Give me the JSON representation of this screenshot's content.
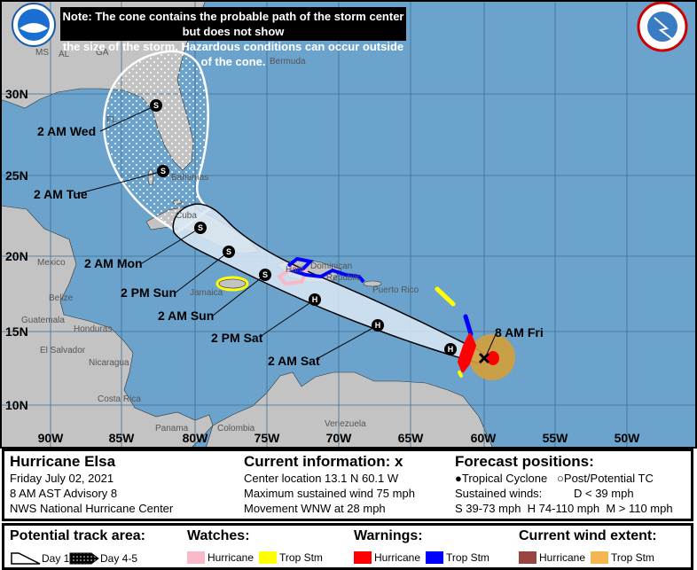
{
  "note": {
    "line1": "Note: The cone contains the probable path of the storm center but does not show",
    "line2": "the size of the storm. Hazardous conditions can occur outside of the cone."
  },
  "logos": {
    "noaa": "NOAA",
    "nws": "NATIONAL WEATHER SERVICE"
  },
  "axes": {
    "lat_labels": [
      "30N",
      "25N",
      "20N",
      "15N",
      "10N"
    ],
    "lon_labels": [
      "90W",
      "85W",
      "80W",
      "75W",
      "70W",
      "65W",
      "60W",
      "55W",
      "50W"
    ]
  },
  "places": [
    "MS",
    "AL",
    "GA",
    "FL",
    "Bermuda",
    "Bahamas",
    "Cuba",
    "Mexico",
    "Belize",
    "Guatemala",
    "Honduras",
    "El Salvador",
    "Nicaragua",
    "Costa Rica",
    "Panama",
    "Colombia",
    "Venezuela",
    "Jamaica",
    "Haiti",
    "Dominican",
    "Republic",
    "Puerto Rico"
  ],
  "forecast_points": [
    {
      "label": "2 AM Wed",
      "symbol": "S"
    },
    {
      "label": "2 AM Tue",
      "symbol": "S"
    },
    {
      "label": "2 AM Mon",
      "symbol": "S"
    },
    {
      "label": "2 PM Sun",
      "symbol": "S"
    },
    {
      "label": "2 AM Sun",
      "symbol": "S"
    },
    {
      "label": "2 PM Sat",
      "symbol": "H"
    },
    {
      "label": "2 AM Sat",
      "symbol": "H"
    },
    {
      "label": "",
      "symbol": "H"
    }
  ],
  "current_position": {
    "label": "8 AM Fri",
    "symbol": "X"
  },
  "info": {
    "storm_name": "Hurricane Elsa",
    "date": "Friday July 02, 2021",
    "advisory": "8 AM AST Advisory 8",
    "source": "NWS National Hurricane Center",
    "current_title": "Current information: x",
    "center_location": "Center location 13.1 N 60.1 W",
    "max_wind": "Maximum sustained wind 75 mph",
    "movement": "Movement WNW at 28 mph",
    "forecast_title": "Forecast positions:",
    "tropical_cyclone": "Tropical Cyclone",
    "post_potential": "Post/Potential TC",
    "sustained_winds": "Sustained winds:",
    "d_range": "D < 39 mph",
    "s_range": "S 39-73 mph",
    "h_range": "H 74-110 mph",
    "m_range": "M > 110 mph"
  },
  "legend": {
    "track_title": "Potential track area:",
    "day13": "Day 1-3",
    "day45": "Day 4-5",
    "watches_title": "Watches:",
    "warnings_title": "Warnings:",
    "wind_title": "Current wind extent:",
    "hurricane": "Hurricane",
    "trop_stm": "Trop Stm"
  },
  "colors": {
    "ocean": "#6ba3cd",
    "land": "#c3c3c3",
    "hurricane_watch": "#f8b8c8",
    "trop_storm_watch": "#ffff00",
    "hurricane_warning": "#ff0000",
    "trop_storm_warning": "#0000ff",
    "hurricane_wind": "#9b4444",
    "trop_storm_wind": "#f4b650",
    "cone_day13": "#dbe9f4"
  }
}
